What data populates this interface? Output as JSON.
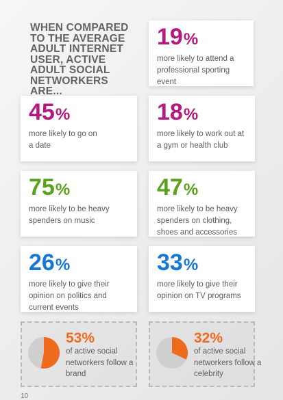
{
  "intro_text": "WHEN COMPARED TO THE AVERAGE ADULT INTERNET USER, ACTIVE ADULT SOCIAL NETWORKERS ARE...",
  "stats": [
    {
      "value": "19",
      "symbol": "%",
      "text": "more likely to attend a professional sporting event",
      "color": "#b5197d"
    },
    {
      "value": "45",
      "symbol": "%",
      "text": "more likely to go on a date",
      "color": "#b5197d"
    },
    {
      "value": "18",
      "symbol": "%",
      "text": "more likely to work out at a gym or health club",
      "color": "#b5197d"
    },
    {
      "value": "75",
      "symbol": "%",
      "text": "more likely to be heavy spenders on music",
      "color": "#5aa11e"
    },
    {
      "value": "47",
      "symbol": "%",
      "text": "more likely to be heavy spenders on clothing, shoes and accessories",
      "color": "#5aa11e"
    },
    {
      "value": "26",
      "symbol": "%",
      "text": "more likely to give their opinion on politics and current events",
      "color": "#1577d6"
    },
    {
      "value": "33",
      "symbol": "%",
      "text": "more likely to give their opinion on TV programs",
      "color": "#1577d6"
    }
  ],
  "pies": [
    {
      "label": "53%",
      "fraction": 0.53,
      "text": "of active social networkers follow a brand",
      "color": "#f06a1e"
    },
    {
      "label": "32%",
      "fraction": 0.32,
      "text": "of active social networkers follow a celebrity",
      "color": "#f06a1e"
    }
  ],
  "page_number": "10"
}
